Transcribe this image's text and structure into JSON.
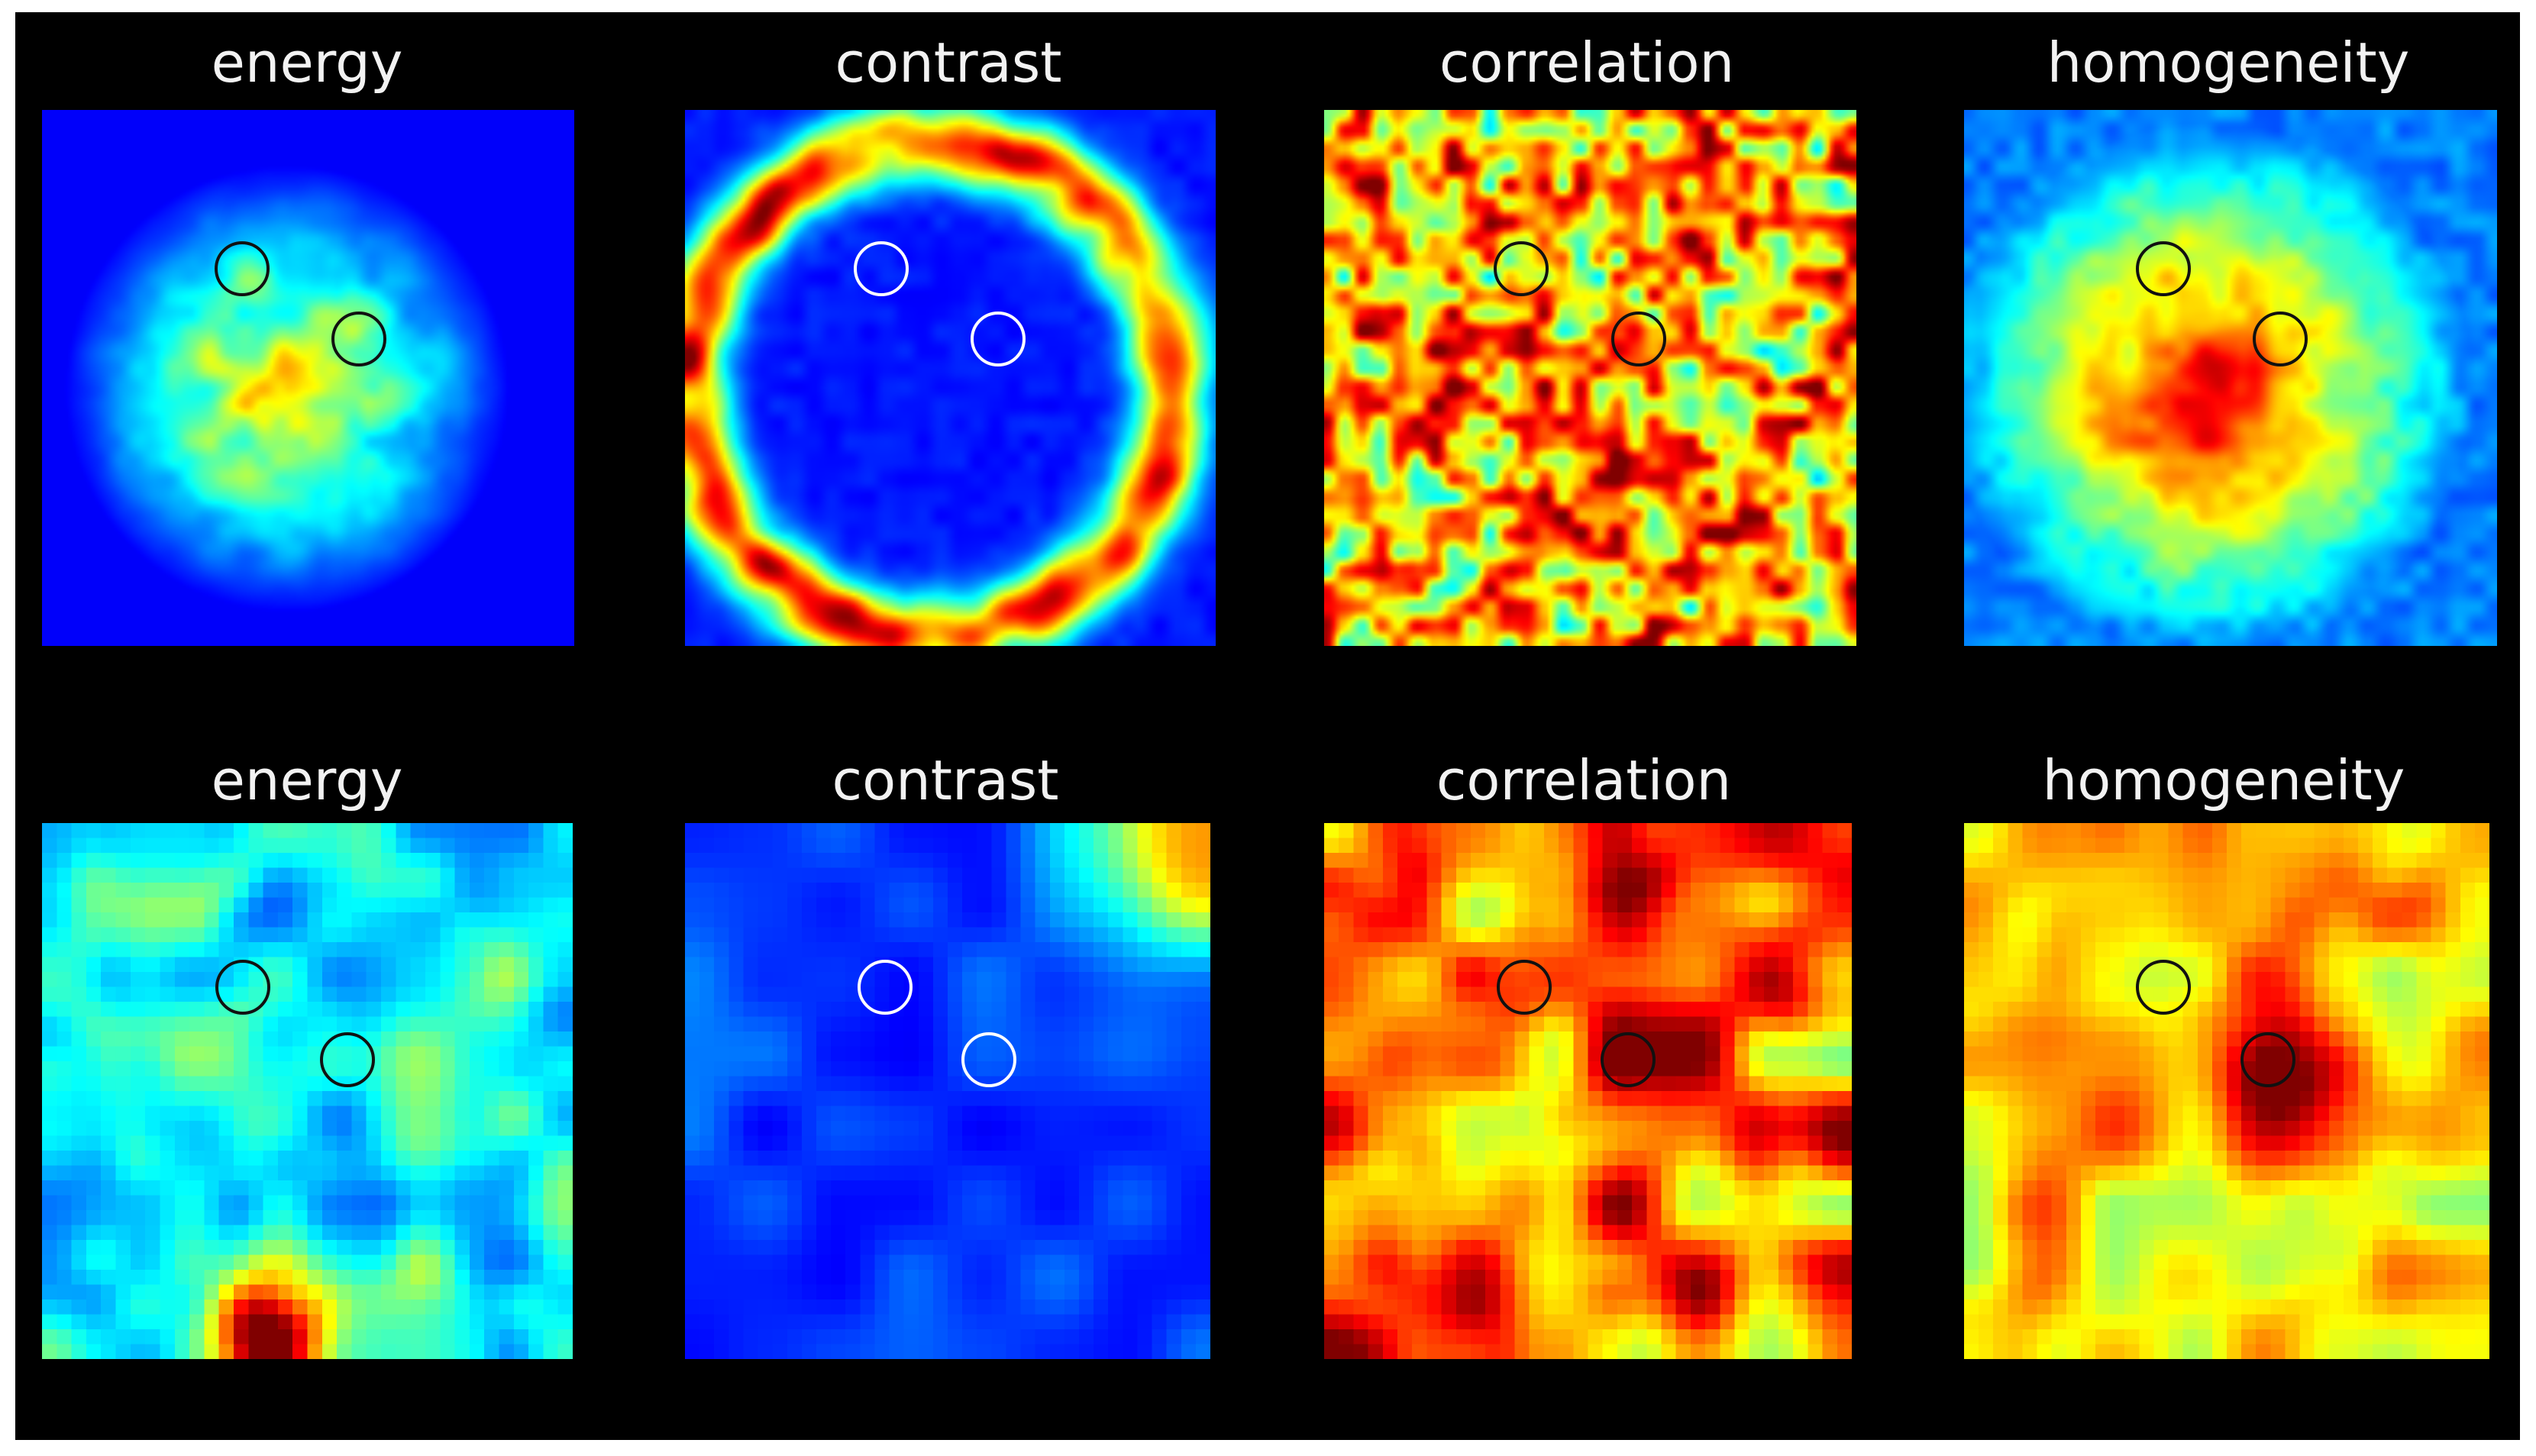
{
  "figure": {
    "background": "#000000",
    "colormap": "jet",
    "rows": [
      {
        "resolution": "fine",
        "panels": [
          {
            "title": "energy",
            "marker_color": "#111111",
            "style": "blob"
          },
          {
            "title": "contrast",
            "marker_color": "#ffffff",
            "style": "ring"
          },
          {
            "title": "correlation",
            "marker_color": "#111111",
            "style": "texture"
          },
          {
            "title": "homogeneity",
            "marker_color": "#111111",
            "style": "blob-high"
          }
        ]
      },
      {
        "resolution": "coarse",
        "panels": [
          {
            "title": "energy",
            "marker_color": "#111111",
            "style": "low"
          },
          {
            "title": "contrast",
            "marker_color": "#ffffff",
            "style": "dark"
          },
          {
            "title": "correlation",
            "marker_color": "#111111",
            "style": "texture"
          },
          {
            "title": "homogeneity",
            "marker_color": "#111111",
            "style": "mid"
          }
        ]
      }
    ]
  }
}
